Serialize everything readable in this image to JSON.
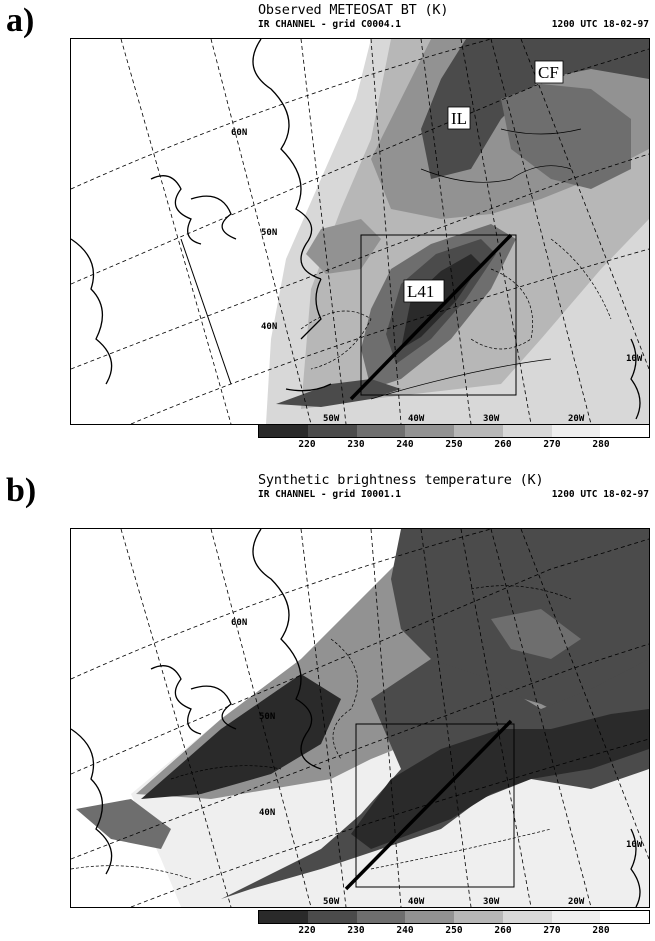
{
  "panels": [
    {
      "label": "a)",
      "title": "Observed METEOSAT BT (K)",
      "subtitle": "IR CHANNEL - grid C0004.1",
      "datetime": "1200 UTC 18-02-97",
      "lat_labels": [
        "60N",
        "50N",
        "40N"
      ],
      "lon_labels": [
        "50W",
        "40W",
        "30W",
        "20W",
        "10W"
      ],
      "annotations": [
        "CF",
        "IL",
        "L41"
      ],
      "colorbar": {
        "ticks": [
          "220",
          "230",
          "240",
          "250",
          "260",
          "270",
          "280"
        ],
        "colors": [
          "#2a2a2a",
          "#4b4b4b",
          "#6e6e6e",
          "#929292",
          "#b7b7b7",
          "#d8d8d8",
          "#efefef",
          "#ffffff"
        ]
      }
    },
    {
      "label": "b)",
      "title": "Synthetic brightness temperature (K)",
      "subtitle": "IR CHANNEL - grid I0001.1",
      "datetime": "1200 UTC 18-02-97",
      "lat_labels": [
        "60N",
        "50N",
        "40N"
      ],
      "lon_labels": [
        "50W",
        "40W",
        "30W",
        "20W",
        "10W"
      ],
      "annotations": [],
      "colorbar": {
        "ticks": [
          "220",
          "230",
          "240",
          "250",
          "260",
          "270",
          "280"
        ],
        "colors": [
          "#2a2a2a",
          "#4b4b4b",
          "#6e6e6e",
          "#929292",
          "#b7b7b7",
          "#d8d8d8",
          "#efefef",
          "#ffffff"
        ]
      }
    }
  ]
}
